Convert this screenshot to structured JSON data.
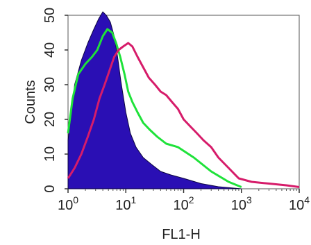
{
  "chart_data": {
    "type": "area",
    "title": "",
    "xlabel": "FL1-H",
    "ylabel": "Counts",
    "x_scale": "log",
    "xlim": [
      1,
      10000
    ],
    "ylim": [
      0,
      50
    ],
    "x_ticks": [
      {
        "value": 1,
        "base": "10",
        "exp": "0"
      },
      {
        "value": 10,
        "base": "10",
        "exp": "1"
      },
      {
        "value": 100,
        "base": "10",
        "exp": "2"
      },
      {
        "value": 1000,
        "base": "10",
        "exp": "3"
      },
      {
        "value": 10000,
        "base": "10",
        "exp": "4"
      }
    ],
    "y_ticks": [
      "0",
      "10",
      "20",
      "30",
      "40",
      "50"
    ],
    "y_tick_values": [
      0,
      10,
      20,
      30,
      40,
      50
    ],
    "grid": false,
    "series": [
      {
        "style": "filled",
        "color": "#2a0fb4",
        "x": [
          1.0,
          1.3,
          1.7,
          2.2,
          2.8,
          3.4,
          4.0,
          4.6,
          5.4,
          6.3,
          7.2,
          8.2,
          10,
          12,
          15,
          20,
          28,
          40,
          60,
          100,
          200,
          400,
          1000
        ],
        "y": [
          14,
          30,
          37,
          42,
          46,
          49,
          51,
          50,
          48,
          44,
          38,
          31,
          22,
          16,
          12,
          9,
          7,
          5,
          4,
          3,
          1.5,
          0.6,
          0
        ]
      },
      {
        "style": "line",
        "color": "#1fe23a",
        "x": [
          1.0,
          1.2,
          1.5,
          2.0,
          2.6,
          3.2,
          4.0,
          4.8,
          5.8,
          6.8,
          8.0,
          9.5,
          11,
          13,
          16,
          20,
          26,
          35,
          50,
          80,
          150,
          300,
          600,
          1000
        ],
        "y": [
          16,
          26,
          33,
          36,
          38,
          40,
          44,
          46,
          45,
          42,
          38,
          33,
          28,
          25,
          22,
          19,
          17,
          15,
          13,
          12,
          9,
          5,
          2,
          0.5
        ]
      },
      {
        "style": "line",
        "color": "#d61c6a",
        "x": [
          1.0,
          1.3,
          1.7,
          2.2,
          2.8,
          3.5,
          4.3,
          5.2,
          6.3,
          7.5,
          9.0,
          11,
          13,
          16,
          20,
          25,
          32,
          40,
          50,
          63,
          80,
          100,
          130,
          170,
          220,
          300,
          400,
          600,
          900,
          1500,
          3000,
          6000,
          10000
        ],
        "y": [
          3,
          6,
          10,
          15,
          20,
          26,
          30,
          34,
          38,
          40,
          41,
          42,
          41,
          38,
          35,
          32,
          30,
          28,
          27,
          25,
          23,
          20,
          18,
          16,
          14,
          12,
          9,
          6,
          3,
          2,
          1.5,
          1,
          0.5
        ]
      }
    ]
  }
}
